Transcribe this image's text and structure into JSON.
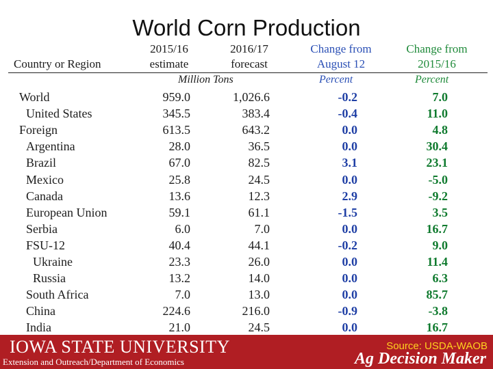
{
  "chart_data": {
    "type": "table",
    "title": "World Corn Production",
    "columns": [
      {
        "line1": "",
        "line2": "Country or Region"
      },
      {
        "line1": "2015/16",
        "line2": "estimate"
      },
      {
        "line1": "2016/17",
        "line2": "forecast"
      },
      {
        "line1": "Change from",
        "line2": "August 12"
      },
      {
        "line1": "Change from",
        "line2": "2015/16"
      }
    ],
    "units": {
      "production": "Million Tons",
      "change_aug": "Percent",
      "change_prev": "Percent"
    },
    "rows": [
      {
        "name": "World",
        "indent": 0,
        "est": "959.0",
        "fcst": "1,026.6",
        "chg_aug": "-0.2",
        "chg_prev": "7.0"
      },
      {
        "name": "United States",
        "indent": 1,
        "est": "345.5",
        "fcst": "383.4",
        "chg_aug": "-0.4",
        "chg_prev": "11.0"
      },
      {
        "name": "Foreign",
        "indent": 0,
        "est": "613.5",
        "fcst": "643.2",
        "chg_aug": "0.0",
        "chg_prev": "4.8"
      },
      {
        "name": "Argentina",
        "indent": 1,
        "est": "28.0",
        "fcst": "36.5",
        "chg_aug": "0.0",
        "chg_prev": "30.4"
      },
      {
        "name": "Brazil",
        "indent": 1,
        "est": "67.0",
        "fcst": "82.5",
        "chg_aug": "3.1",
        "chg_prev": "23.1"
      },
      {
        "name": "Mexico",
        "indent": 1,
        "est": "25.8",
        "fcst": "24.5",
        "chg_aug": "0.0",
        "chg_prev": "-5.0"
      },
      {
        "name": "Canada",
        "indent": 1,
        "est": "13.6",
        "fcst": "12.3",
        "chg_aug": "2.9",
        "chg_prev": "-9.2"
      },
      {
        "name": "European Union",
        "indent": 1,
        "est": "59.1",
        "fcst": "61.1",
        "chg_aug": "-1.5",
        "chg_prev": "3.5"
      },
      {
        "name": "Serbia",
        "indent": 1,
        "est": "6.0",
        "fcst": "7.0",
        "chg_aug": "0.0",
        "chg_prev": "16.7"
      },
      {
        "name": "FSU-12",
        "indent": 1,
        "est": "40.4",
        "fcst": "44.1",
        "chg_aug": "-0.2",
        "chg_prev": "9.0"
      },
      {
        "name": "Ukraine",
        "indent": 2,
        "est": "23.3",
        "fcst": "26.0",
        "chg_aug": "0.0",
        "chg_prev": "11.4"
      },
      {
        "name": "Russia",
        "indent": 2,
        "est": "13.2",
        "fcst": "14.0",
        "chg_aug": "0.0",
        "chg_prev": "6.3"
      },
      {
        "name": "South Africa",
        "indent": 1,
        "est": "7.0",
        "fcst": "13.0",
        "chg_aug": "0.0",
        "chg_prev": "85.7"
      },
      {
        "name": "China",
        "indent": 1,
        "est": "224.6",
        "fcst": "216.0",
        "chg_aug": "-0.9",
        "chg_prev": "-3.8"
      },
      {
        "name": "India",
        "indent": 1,
        "est": "21.0",
        "fcst": "24.5",
        "chg_aug": "0.0",
        "chg_prev": "16.7"
      }
    ]
  },
  "footer": {
    "university": "IOWA STATE UNIVERSITY",
    "department": "Extension and Outreach/Department of Economics",
    "source": "Source: USDA-WAOB",
    "brand": "Ag Decision Maker"
  },
  "colors": {
    "brand_red": "#b01e23",
    "change_blue": "#1f3fa5",
    "percent_green": "#0f7a2e",
    "source_yellow": "#ffd21f"
  }
}
